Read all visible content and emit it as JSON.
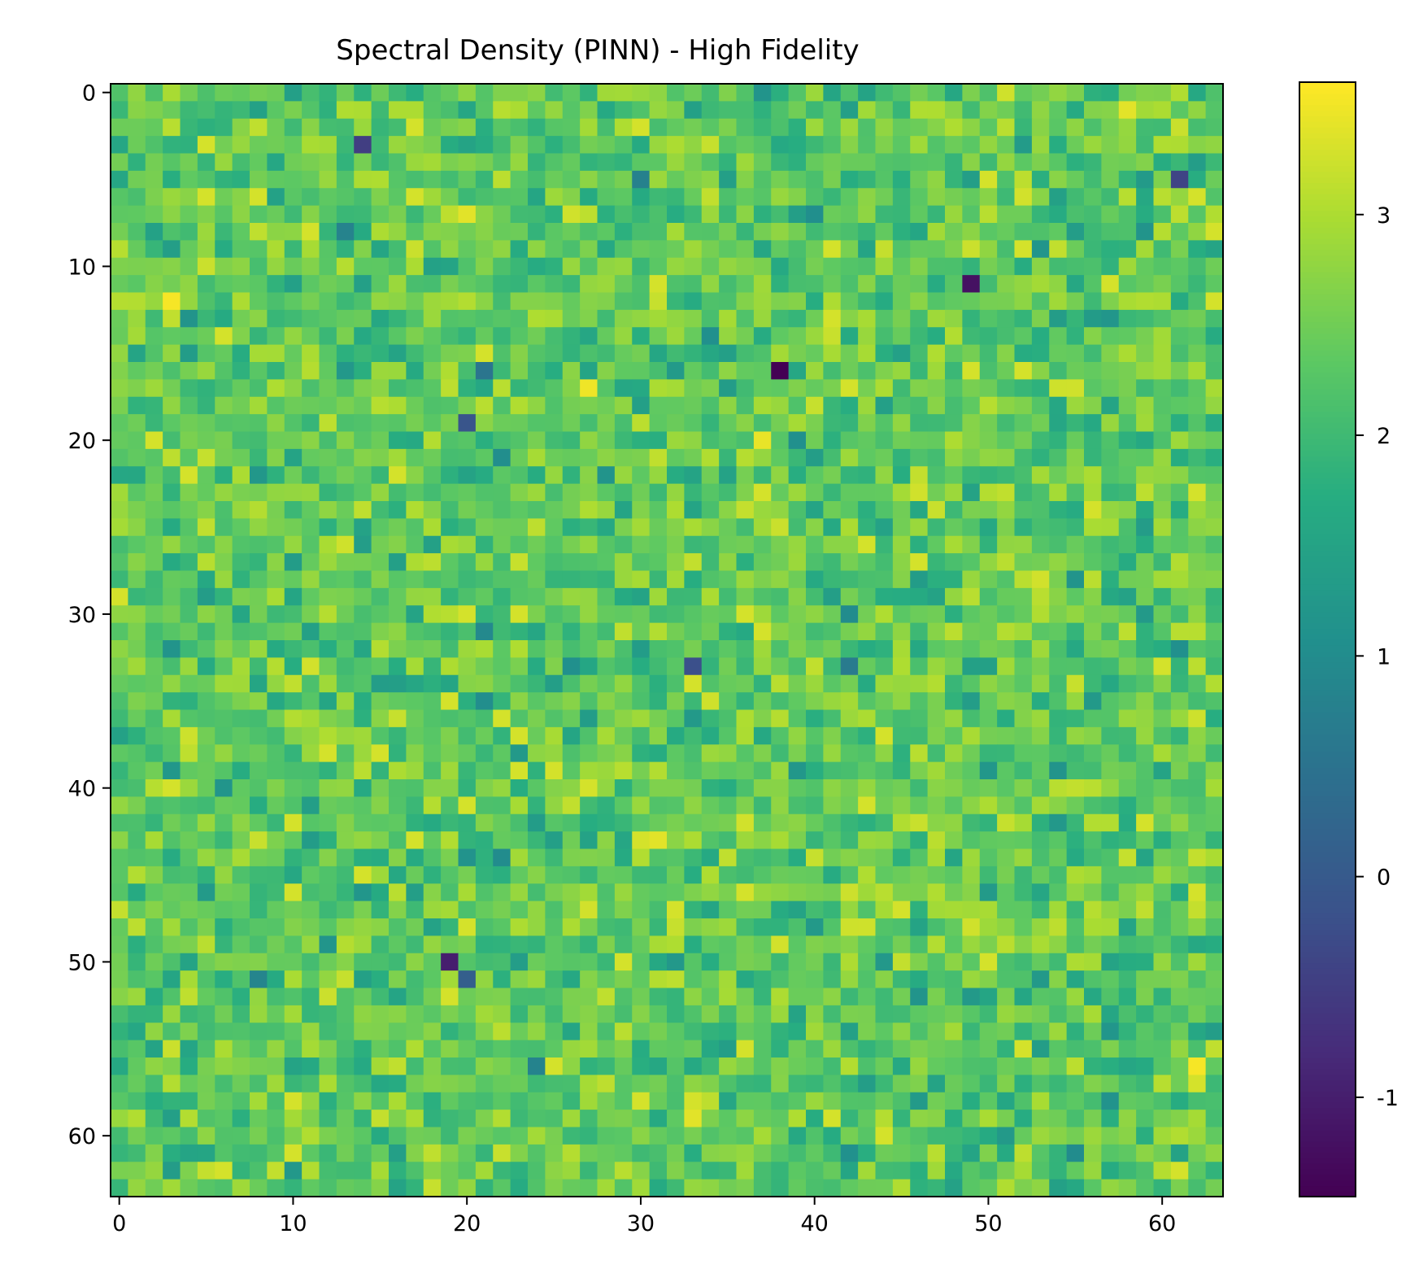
{
  "chart_data": {
    "type": "heatmap",
    "title": "Spectral Density (PINN) - High Fidelity",
    "xlabel": "",
    "ylabel": "",
    "rows": 64,
    "cols": 64,
    "xlim": [
      -0.5,
      63.5
    ],
    "ylim": [
      63.5,
      -0.5
    ],
    "x_ticks": [
      0,
      10,
      20,
      30,
      40,
      50,
      60
    ],
    "y_ticks": [
      0,
      10,
      20,
      30,
      40,
      50,
      60
    ],
    "colormap": "viridis",
    "colorbar": {
      "vmin": -1.45,
      "vmax": 3.6,
      "ticks": [
        -1,
        0,
        1,
        2,
        3
      ]
    },
    "value_distribution": {
      "mean": 2.35,
      "std": 0.45
    },
    "notable_cells": [
      {
        "row": 16,
        "col": 38,
        "value": -1.45
      },
      {
        "row": 11,
        "col": 49,
        "value": -1.2
      },
      {
        "row": 50,
        "col": 19,
        "value": -1.0
      },
      {
        "row": 3,
        "col": 14,
        "value": -0.5
      },
      {
        "row": 5,
        "col": 61,
        "value": -0.4
      },
      {
        "row": 19,
        "col": 20,
        "value": -0.1
      },
      {
        "row": 51,
        "col": 20,
        "value": 0.1
      },
      {
        "row": 33,
        "col": 33,
        "value": -0.2
      },
      {
        "row": 12,
        "col": 3,
        "value": 3.55
      },
      {
        "row": 56,
        "col": 62,
        "value": 3.55
      },
      {
        "row": 17,
        "col": 27,
        "value": 3.5
      },
      {
        "row": 20,
        "col": 37,
        "value": 3.45
      },
      {
        "row": 1,
        "col": 58,
        "value": 3.4
      },
      {
        "row": 7,
        "col": 20,
        "value": 3.4
      },
      {
        "row": 59,
        "col": 33,
        "value": 3.4
      },
      {
        "row": 43,
        "col": 31,
        "value": 3.4
      }
    ]
  }
}
